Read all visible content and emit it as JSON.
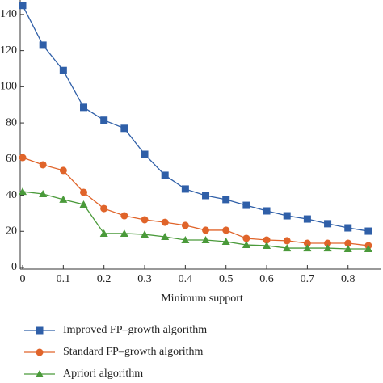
{
  "chart_data": {
    "type": "line",
    "x": [
      0,
      0.05,
      0.1,
      0.15,
      0.2,
      0.25,
      0.3,
      0.35,
      0.4,
      0.45,
      0.5,
      0.55,
      0.6,
      0.65,
      0.7,
      0.75,
      0.8,
      0.85
    ],
    "series": [
      {
        "name": "Improved FP–growth algorithm",
        "color": "#2f5fa8",
        "marker": "square",
        "values": [
          145,
          123,
          109,
          88.6,
          81.5,
          77,
          62.6,
          51,
          43.4,
          39.8,
          37.6,
          34.4,
          31.3,
          28.6,
          26.8,
          24.2,
          21.9,
          20.1
        ]
      },
      {
        "name": "Standard FP–growth algorithm",
        "color": "#e0642a",
        "marker": "circle",
        "values": [
          60.8,
          56.8,
          53.7,
          41.6,
          32.6,
          28.6,
          26.4,
          25,
          23.3,
          20.6,
          20.6,
          16.1,
          15.2,
          14.8,
          13.4,
          13.4,
          13.4,
          12.1
        ]
      },
      {
        "name": "Apriori algorithm",
        "color": "#4a9a3a",
        "marker": "triangle",
        "values": [
          42,
          40.7,
          37.6,
          34.9,
          18.8,
          18.8,
          18.3,
          17,
          15.2,
          15.2,
          14.3,
          12.5,
          12.1,
          10.7,
          10.7,
          10.7,
          10.3,
          10.3
        ]
      }
    ],
    "x_label": "Minimum support",
    "xlim": [
      0,
      0.88
    ],
    "xticks": [
      0,
      0.1,
      0.2,
      0.3,
      0.4,
      0.5,
      0.6,
      0.7,
      0.8
    ],
    "ylim": [
      0,
      148
    ],
    "yticks": [
      0,
      20,
      40,
      60,
      80,
      100,
      120,
      140
    ],
    "legend": "bottom"
  }
}
